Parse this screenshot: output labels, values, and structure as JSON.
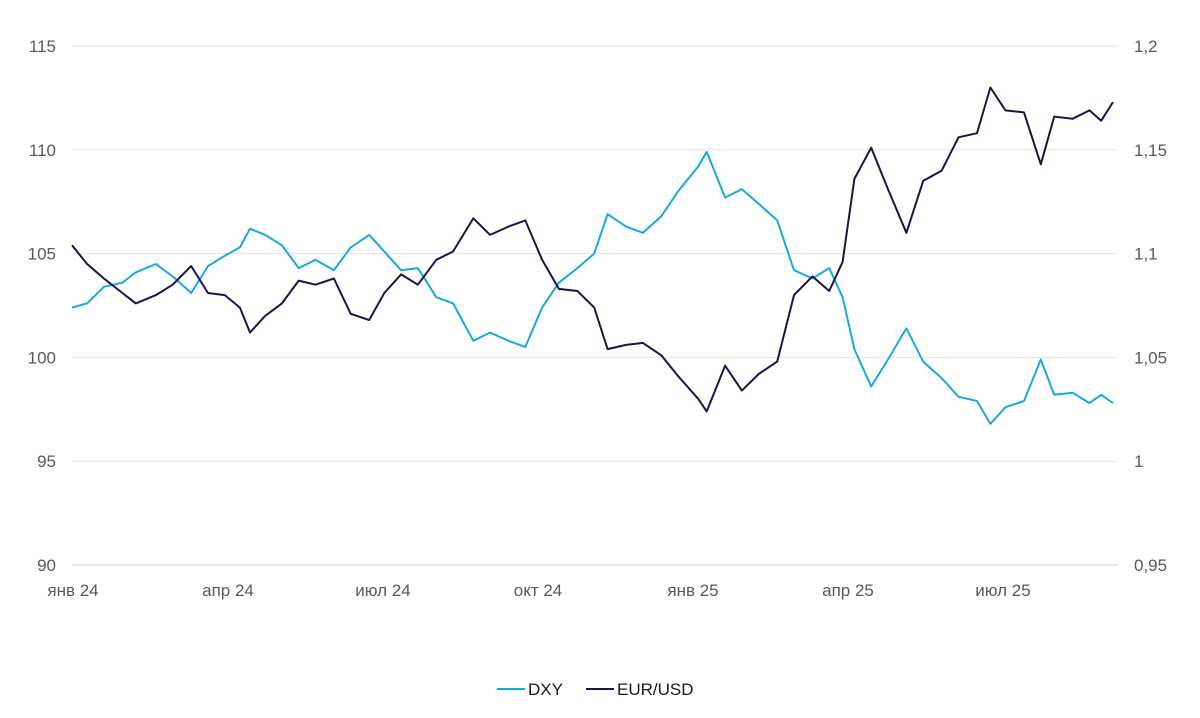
{
  "chart_data": {
    "type": "line",
    "title": "",
    "x_ticks": [
      "янв 24",
      "апр 24",
      "июл 24",
      "окт 24",
      "янв 25",
      "апр 25",
      "июл 25"
    ],
    "x_range": [
      "2024-01-01",
      "2025-09-15"
    ],
    "y_left": {
      "range": [
        90,
        115
      ],
      "ticks": [
        "90",
        "95",
        "100",
        "105",
        "110",
        "115"
      ]
    },
    "y_right": {
      "range": [
        0.95,
        1.2
      ],
      "ticks": [
        "0,95",
        "1",
        "1,05",
        "1,1",
        "1,15",
        "1,2"
      ]
    },
    "grid": true,
    "legend_position": "bottom",
    "series": [
      {
        "name": "DXY",
        "axis": "left",
        "color": "#17A9E1",
        "points": [
          [
            "2024-01-01",
            102.4
          ],
          [
            "2024-01-10",
            102.6
          ],
          [
            "2024-01-20",
            103.4
          ],
          [
            "2024-01-31",
            103.6
          ],
          [
            "2024-02-08",
            104.1
          ],
          [
            "2024-02-20",
            104.5
          ],
          [
            "2024-03-01",
            103.9
          ],
          [
            "2024-03-12",
            103.1
          ],
          [
            "2024-03-22",
            104.4
          ],
          [
            "2024-04-01",
            104.9
          ],
          [
            "2024-04-10",
            105.3
          ],
          [
            "2024-04-16",
            106.2
          ],
          [
            "2024-04-25",
            105.9
          ],
          [
            "2024-05-05",
            105.4
          ],
          [
            "2024-05-15",
            104.3
          ],
          [
            "2024-05-25",
            104.7
          ],
          [
            "2024-06-05",
            104.2
          ],
          [
            "2024-06-15",
            105.3
          ],
          [
            "2024-06-26",
            105.9
          ],
          [
            "2024-07-05",
            105.1
          ],
          [
            "2024-07-15",
            104.2
          ],
          [
            "2024-07-25",
            104.3
          ],
          [
            "2024-08-05",
            102.9
          ],
          [
            "2024-08-15",
            102.6
          ],
          [
            "2024-08-27",
            100.8
          ],
          [
            "2024-09-06",
            101.2
          ],
          [
            "2024-09-17",
            100.8
          ],
          [
            "2024-09-27",
            100.5
          ],
          [
            "2024-10-07",
            102.4
          ],
          [
            "2024-10-17",
            103.6
          ],
          [
            "2024-10-28",
            104.3
          ],
          [
            "2024-11-07",
            105.0
          ],
          [
            "2024-11-15",
            106.9
          ],
          [
            "2024-11-26",
            106.3
          ],
          [
            "2024-12-06",
            106.0
          ],
          [
            "2024-12-17",
            106.8
          ],
          [
            "2024-12-27",
            108.0
          ],
          [
            "2025-01-08",
            109.2
          ],
          [
            "2025-01-13",
            109.9
          ],
          [
            "2025-01-24",
            107.7
          ],
          [
            "2025-02-03",
            108.1
          ],
          [
            "2025-02-13",
            107.4
          ],
          [
            "2025-02-24",
            106.6
          ],
          [
            "2025-03-06",
            104.2
          ],
          [
            "2025-03-17",
            103.8
          ],
          [
            "2025-03-27",
            104.3
          ],
          [
            "2025-04-04",
            102.9
          ],
          [
            "2025-04-11",
            100.4
          ],
          [
            "2025-04-21",
            98.6
          ],
          [
            "2025-05-01",
            99.9
          ],
          [
            "2025-05-12",
            101.4
          ],
          [
            "2025-05-22",
            99.8
          ],
          [
            "2025-06-02",
            99.0
          ],
          [
            "2025-06-12",
            98.1
          ],
          [
            "2025-06-23",
            97.9
          ],
          [
            "2025-07-01",
            96.8
          ],
          [
            "2025-07-10",
            97.6
          ],
          [
            "2025-07-21",
            97.9
          ],
          [
            "2025-07-31",
            99.9
          ],
          [
            "2025-08-08",
            98.2
          ],
          [
            "2025-08-19",
            98.3
          ],
          [
            "2025-08-29",
            97.8
          ],
          [
            "2025-09-05",
            98.2
          ],
          [
            "2025-09-12",
            97.8
          ]
        ]
      },
      {
        "name": "EUR/USD",
        "axis": "right",
        "color": "#1B1446",
        "points": [
          [
            "2024-01-01",
            1.104
          ],
          [
            "2024-01-10",
            1.095
          ],
          [
            "2024-01-20",
            1.088
          ],
          [
            "2024-01-31",
            1.081
          ],
          [
            "2024-02-08",
            1.076
          ],
          [
            "2024-02-20",
            1.08
          ],
          [
            "2024-03-01",
            1.085
          ],
          [
            "2024-03-12",
            1.094
          ],
          [
            "2024-03-22",
            1.081
          ],
          [
            "2024-04-01",
            1.08
          ],
          [
            "2024-04-10",
            1.074
          ],
          [
            "2024-04-16",
            1.062
          ],
          [
            "2024-04-25",
            1.07
          ],
          [
            "2024-05-05",
            1.076
          ],
          [
            "2024-05-15",
            1.087
          ],
          [
            "2024-05-25",
            1.085
          ],
          [
            "2024-06-05",
            1.088
          ],
          [
            "2024-06-15",
            1.071
          ],
          [
            "2024-06-26",
            1.068
          ],
          [
            "2024-07-05",
            1.081
          ],
          [
            "2024-07-15",
            1.09
          ],
          [
            "2024-07-25",
            1.085
          ],
          [
            "2024-08-05",
            1.097
          ],
          [
            "2024-08-15",
            1.101
          ],
          [
            "2024-08-27",
            1.117
          ],
          [
            "2024-09-06",
            1.109
          ],
          [
            "2024-09-17",
            1.113
          ],
          [
            "2024-09-27",
            1.116
          ],
          [
            "2024-10-07",
            1.097
          ],
          [
            "2024-10-17",
            1.083
          ],
          [
            "2024-10-28",
            1.082
          ],
          [
            "2024-11-07",
            1.074
          ],
          [
            "2024-11-15",
            1.054
          ],
          [
            "2024-11-26",
            1.056
          ],
          [
            "2024-12-06",
            1.057
          ],
          [
            "2024-12-17",
            1.051
          ],
          [
            "2024-12-27",
            1.041
          ],
          [
            "2025-01-08",
            1.03
          ],
          [
            "2025-01-13",
            1.024
          ],
          [
            "2025-01-24",
            1.046
          ],
          [
            "2025-02-03",
            1.034
          ],
          [
            "2025-02-13",
            1.042
          ],
          [
            "2025-02-24",
            1.048
          ],
          [
            "2025-03-06",
            1.08
          ],
          [
            "2025-03-17",
            1.089
          ],
          [
            "2025-03-27",
            1.082
          ],
          [
            "2025-04-04",
            1.096
          ],
          [
            "2025-04-11",
            1.136
          ],
          [
            "2025-04-21",
            1.151
          ],
          [
            "2025-05-01",
            1.131
          ],
          [
            "2025-05-12",
            1.11
          ],
          [
            "2025-05-22",
            1.135
          ],
          [
            "2025-06-02",
            1.14
          ],
          [
            "2025-06-12",
            1.156
          ],
          [
            "2025-06-23",
            1.158
          ],
          [
            "2025-07-01",
            1.18
          ],
          [
            "2025-07-10",
            1.169
          ],
          [
            "2025-07-21",
            1.168
          ],
          [
            "2025-07-31",
            1.143
          ],
          [
            "2025-08-08",
            1.166
          ],
          [
            "2025-08-19",
            1.165
          ],
          [
            "2025-08-29",
            1.169
          ],
          [
            "2025-09-05",
            1.164
          ],
          [
            "2025-09-12",
            1.173
          ]
        ]
      }
    ]
  }
}
